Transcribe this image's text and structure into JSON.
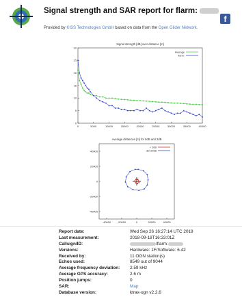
{
  "header": {
    "title": "Signal strength and SAR report for flarm:",
    "provided_prefix": "Provided by",
    "provider": "KISS Technologies GmbH",
    "provided_middle": "based on data from the",
    "source": "Open Glider Network.",
    "facebook_glyph": "f"
  },
  "chart_data": [
    {
      "type": "line",
      "title": "Signal strength [dB] over distance [m]",
      "xlim": [
        0,
        40000
      ],
      "ylim": [
        0,
        30
      ],
      "xticks": [
        "0",
        "5000",
        "10000",
        "15000",
        "20000",
        "25000",
        "30000",
        "35000",
        "40000"
      ],
      "yticks": [
        "0",
        "5",
        "10",
        "15",
        "20",
        "25",
        "30"
      ],
      "x": [
        0,
        500,
        1000,
        1500,
        2000,
        2500,
        3000,
        3500,
        4000,
        5000,
        6000,
        7000,
        8000,
        9000,
        10000,
        11000,
        12000,
        13000,
        14000,
        15000,
        16000,
        17000,
        18000,
        19000,
        20000,
        21000,
        22000,
        23000,
        24000,
        25000,
        26000,
        27000,
        28000,
        29000,
        30000,
        31000,
        32000,
        33000,
        34000,
        35000,
        36000,
        37000,
        38000,
        39000,
        40000
      ],
      "series": [
        {
          "name": "Average",
          "color": "#44cc44",
          "values": [
            21,
            17,
            15.5,
            14,
            13,
            12.5,
            12,
            12,
            11.5,
            11,
            11,
            10.5,
            10.5,
            10,
            10,
            10,
            9.8,
            9.6,
            9.5,
            9.4,
            9.3,
            9.2,
            9.1,
            9,
            9,
            8.9,
            8.8,
            8.7,
            8.6,
            8.5,
            8.4,
            8.4,
            8.3,
            8.2,
            8.1,
            8,
            8,
            7.9,
            7.8,
            7.7,
            7.6,
            7.5,
            7.5,
            7.4,
            7.4
          ]
        },
        {
          "name": "flarm:",
          "color": "#3344cc",
          "values": [
            25,
            20,
            18,
            17,
            16,
            15,
            14,
            13.5,
            12.5,
            11,
            10,
            9,
            8.5,
            8,
            7,
            7,
            6,
            6,
            5.5,
            5.5,
            5,
            5,
            5,
            5.5,
            5,
            5,
            6,
            5,
            4.5,
            5,
            5.5,
            6,
            5,
            4.5,
            4,
            3.5,
            4,
            4,
            5,
            4.5,
            4,
            3.5,
            3,
            3.5,
            2.5
          ]
        }
      ]
    },
    {
      "type": "scatter",
      "title": "Average distances [m] for 5dB and 3dB",
      "xlim": [
        -50000,
        50000
      ],
      "ylim": [
        -50000,
        50000
      ],
      "xticks": [
        "-40000",
        "-20000",
        "0",
        "20000",
        "40000"
      ],
      "yticks": [
        "40000",
        "20000",
        "0",
        "-20000",
        "-40000"
      ],
      "series": [
        {
          "name": "< 3dB",
          "color": "#cc2222",
          "x": [
            2500,
            1500,
            -1000,
            -2500,
            -1500,
            1000,
            3000
          ],
          "y": [
            500,
            2500,
            2800,
            500,
            -2000,
            -2800,
            -1500
          ]
        },
        {
          "name": "3D-20dB",
          "color": "#3344cc",
          "x": [
            2000,
            9000,
            14000,
            15000,
            14000,
            10000,
            3000,
            -5000,
            -12000,
            -15000,
            -14000,
            -9000,
            -2000
          ],
          "y": [
            16000,
            14000,
            9000,
            2000,
            -5000,
            -10000,
            -12000,
            -11000,
            -7000,
            -1000,
            6000,
            13000,
            16000
          ]
        }
      ]
    }
  ],
  "report": [
    {
      "label": "Report date:",
      "value": "Wed Sep 26 16:27:14 UTC 2018"
    },
    {
      "label": "Last measurement:",
      "value": "2018-09-18T16:33:01Z"
    },
    {
      "label": "Callsign/ID:",
      "value": "/flarm:"
    },
    {
      "label": "Versions:",
      "value": "Hardware: 1F/Software: 6.42"
    },
    {
      "label": "Received by:",
      "value": "11 OGN station(s)"
    },
    {
      "label": "Echos used:",
      "value": "8549 out of 9044"
    },
    {
      "label": "Average frequency deviation:",
      "value": "2.59 kHz"
    },
    {
      "label": "Average GPS accuracy:",
      "value": "2.6 m"
    },
    {
      "label": "Position jumps:",
      "value": "0"
    },
    {
      "label": "SAR:",
      "value": "Map"
    },
    {
      "label": "Database version:",
      "value": "ktrax-ogn v2.2.6"
    }
  ]
}
